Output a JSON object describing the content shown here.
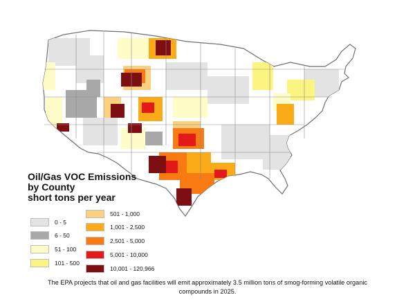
{
  "legend": {
    "title_lines": [
      "Oil/Gas VOC Emissions",
      "by County",
      "short tons per year"
    ],
    "left_items": [
      {
        "label": "0 - 5",
        "color": "#e3e3e3"
      },
      {
        "label": "6 - 50",
        "color": "#a8a8a8"
      },
      {
        "label": "51 - 100",
        "color": "#fffcc8"
      },
      {
        "label": "101 - 500",
        "color": "#fbf480"
      }
    ],
    "right_items": [
      {
        "label": "501 - 1,000",
        "color": "#fbd07e"
      },
      {
        "label": "1,001 - 2,500",
        "color": "#fbab18"
      },
      {
        "label": "2,501 - 5,000",
        "color": "#f87a12"
      },
      {
        "label": "5,001 - 10,000",
        "color": "#e4191a"
      },
      {
        "label": "10,001 - 120,966",
        "color": "#7d0f12"
      }
    ]
  },
  "caption": {
    "line1": "The EPA projects that oil and gas facilities will emit approximately 3.5 million tons of smog-forming volatile organic",
    "line2": "compounds in 2025."
  },
  "map": {
    "base_color": "#ffffff",
    "border_color": "#6e6e6e"
  }
}
